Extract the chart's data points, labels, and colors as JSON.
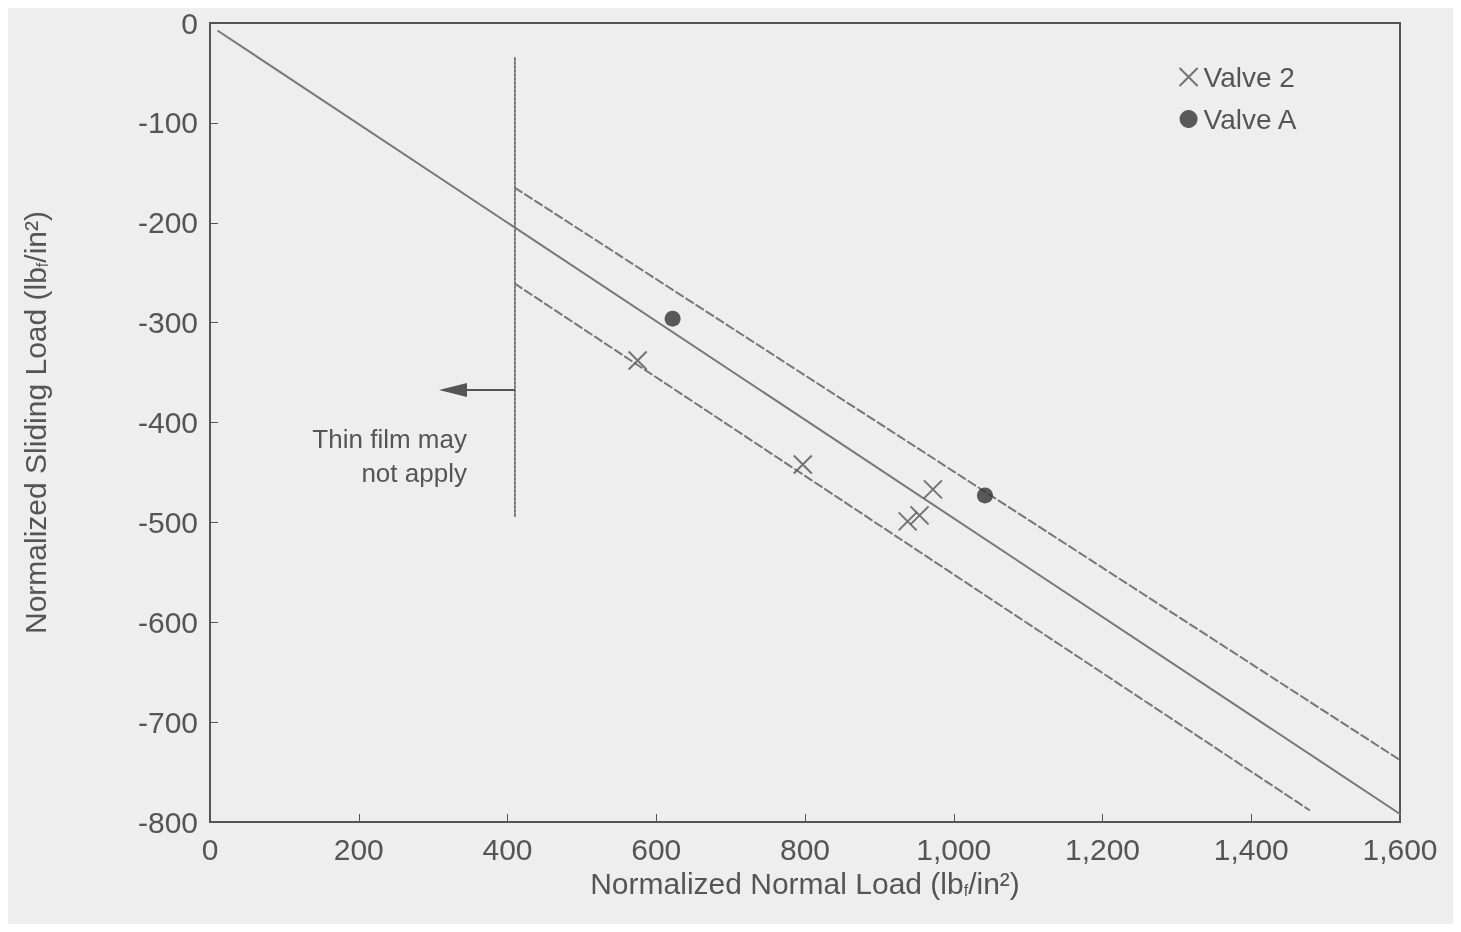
{
  "chart_data": {
    "type": "scatter",
    "xlabel": "Normalized Normal Load (lb$_{f}$/in²)",
    "ylabel": "Normalized Sliding Load (lb$_{f}$/in²)",
    "xlim": [
      0,
      1600
    ],
    "xticks": [
      0,
      200,
      400,
      600,
      800,
      {
        "value": 1000,
        "label": "1,000"
      },
      {
        "value": 1200,
        "label": "1,200"
      },
      {
        "value": 1400,
        "label": "1,400"
      },
      {
        "value": 1600,
        "label": "1,600"
      }
    ],
    "ylim": [
      -800,
      0
    ],
    "yticks": [
      -800,
      -700,
      -600,
      -500,
      -400,
      -300,
      -200,
      -100,
      0
    ],
    "grid": false,
    "legend": "top right",
    "annotations": [
      {
        "text": "Thin film may\nnot apply",
        "x": 410,
        "y": -367
      }
    ],
    "series": [
      {
        "name": "Valve 2",
        "marker": "cross",
        "color": "#555555",
        "x": [
          575,
          797,
          972,
          954,
          938
        ],
        "values": [
          -338,
          -442,
          -467,
          -493,
          -499
        ]
      },
      {
        "name": "Valve A",
        "marker": "circle",
        "color": "#333333",
        "x": [
          622,
          1042
        ],
        "values": [
          -296,
          -473
        ]
      },
      {
        "type": "line",
        "marker": "none",
        "line_style": "solid",
        "color": "#777777",
        "x": [
          11,
          1600
        ],
        "values": [
          -8,
          -792
        ]
      },
      {
        "type": "line",
        "marker": "none",
        "line_style": "dashed",
        "color": "#777777",
        "x": [
          410,
          1600
        ],
        "values": [
          -165,
          -738
        ]
      },
      {
        "type": "line",
        "marker": "none",
        "line_style": "dashed",
        "color": "#777777",
        "x": [
          410,
          1478
        ],
        "values": [
          -261,
          -788
        ]
      },
      {
        "type": "line",
        "marker": "none",
        "line_style": "dotted",
        "color": "#777777",
        "x": [
          410,
          410
        ],
        "values": [
          -35,
          -495
        ]
      }
    ]
  }
}
